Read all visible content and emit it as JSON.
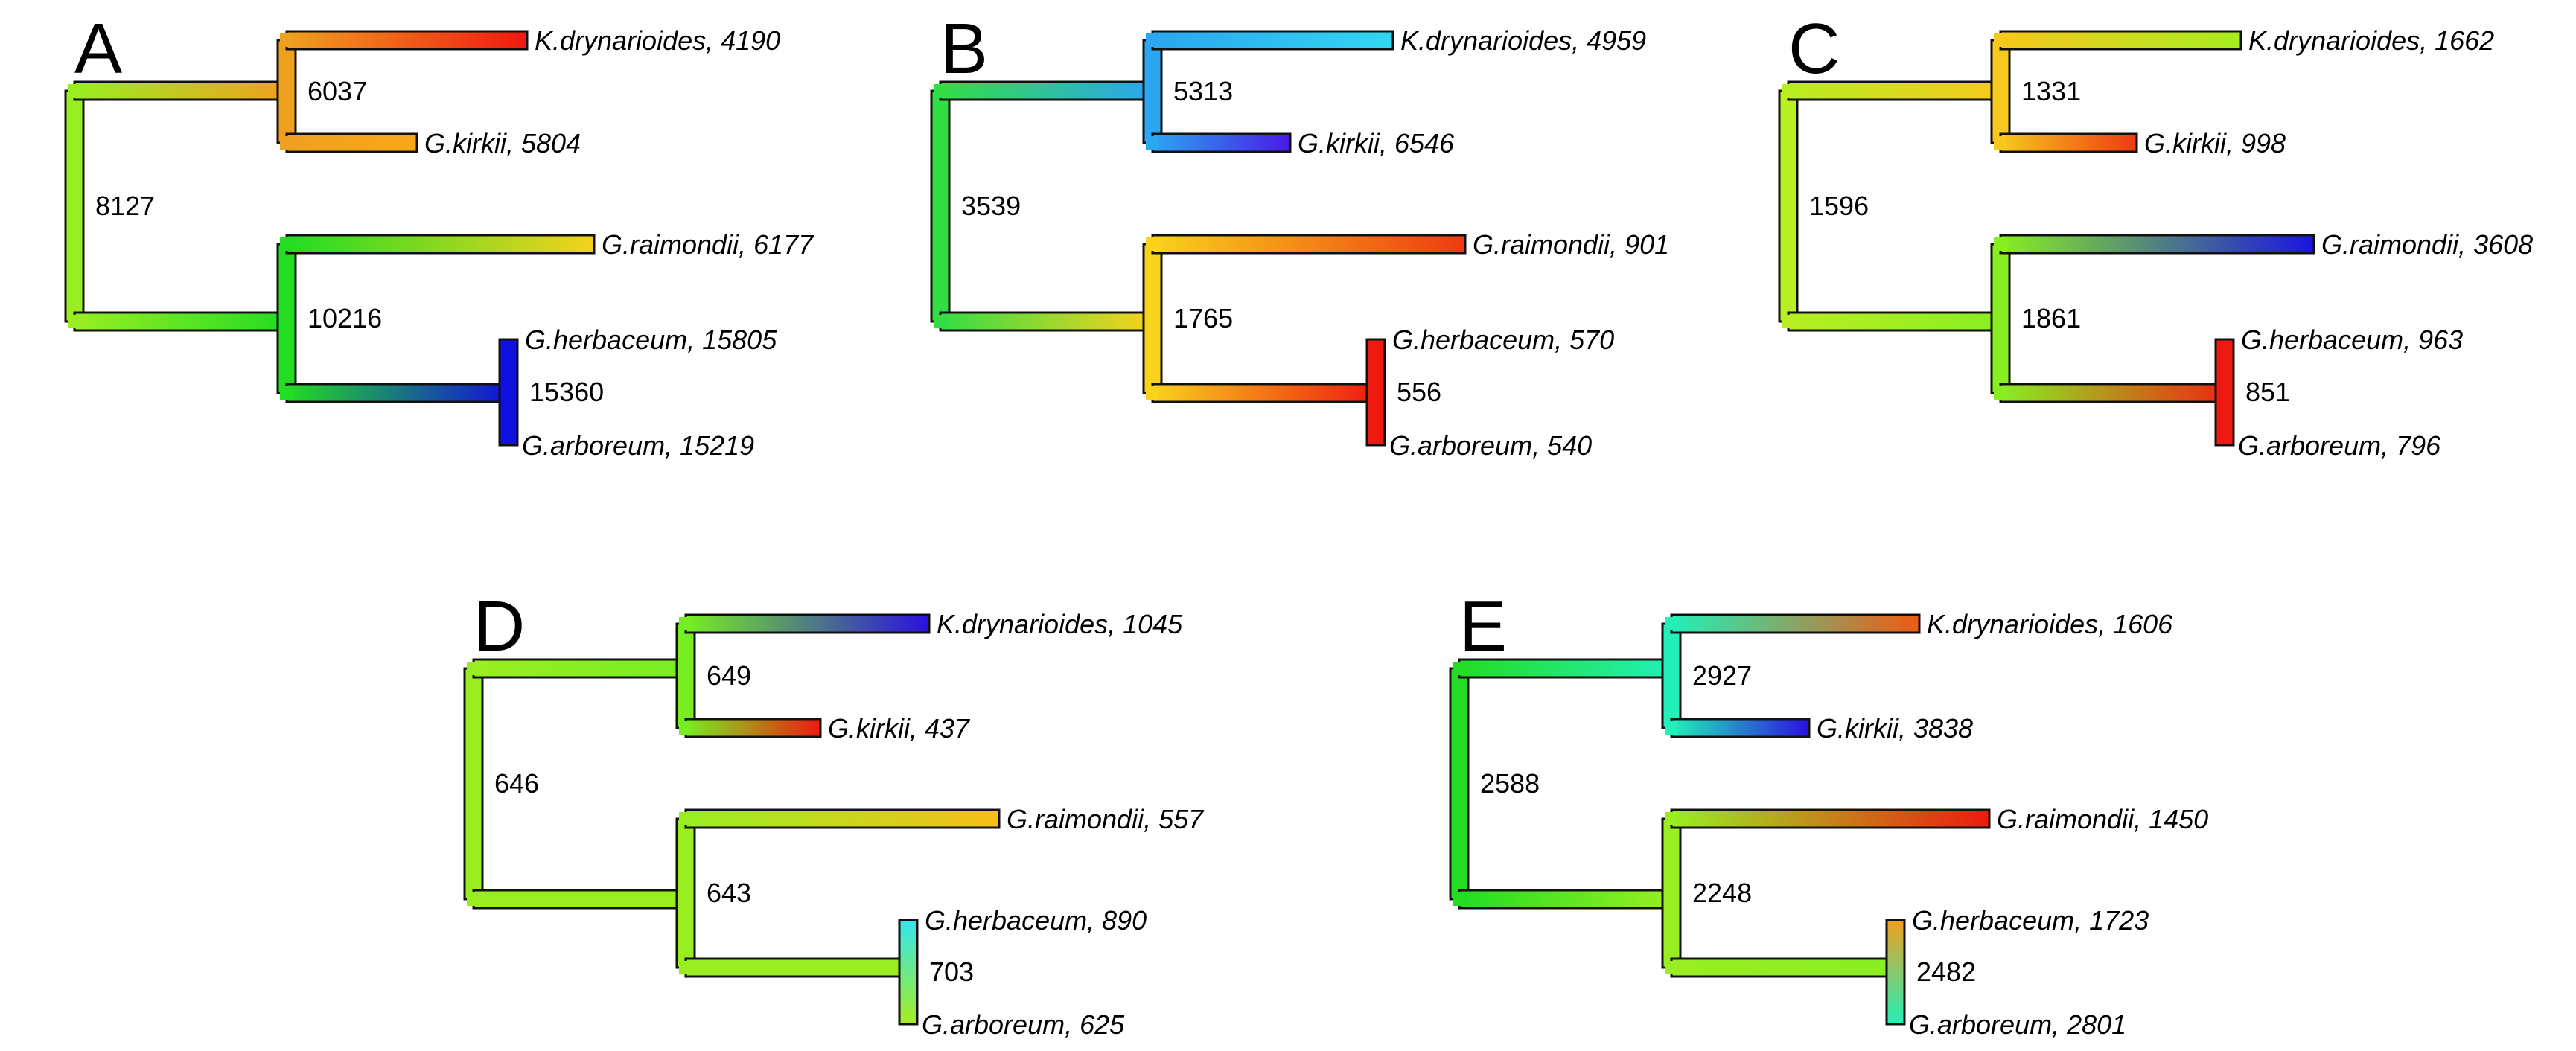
{
  "panels": [
    {
      "letter": "A",
      "nodes": {
        "root": "8127",
        "kg": "6037",
        "rha": "10216",
        "ha": "15360"
      },
      "leaves": [
        {
          "species": "K.drynarioides",
          "value": "4190",
          "label": "K.drynarioides, 4190"
        },
        {
          "species": "G.kirkii",
          "value": "5804",
          "label": "G.kirkii, 5804"
        },
        {
          "species": "G.raimondii",
          "value": "6177",
          "label": "G.raimondii, 6177"
        },
        {
          "species": "G.herbaceum",
          "value": "15805",
          "label": "G.herbaceum, 15805"
        },
        {
          "species": "G.arboreum",
          "value": "15219",
          "label": "G.arboreum, 15219"
        }
      ]
    },
    {
      "letter": "B",
      "nodes": {
        "root": "3539",
        "kg": "5313",
        "rha": "1765",
        "ha": "556"
      },
      "leaves": [
        {
          "species": "K.drynarioides",
          "value": "4959",
          "label": "K.drynarioides, 4959"
        },
        {
          "species": "G.kirkii",
          "value": "6546",
          "label": "G.kirkii, 6546"
        },
        {
          "species": "G.raimondii",
          "value": "901",
          "label": "G.raimondii, 901"
        },
        {
          "species": "G.herbaceum",
          "value": "570",
          "label": "G.herbaceum, 570"
        },
        {
          "species": "G.arboreum",
          "value": "540",
          "label": "G.arboreum, 540"
        }
      ]
    },
    {
      "letter": "C",
      "nodes": {
        "root": "1596",
        "kg": "1331",
        "rha": "1861",
        "ha": "851"
      },
      "leaves": [
        {
          "species": "K.drynarioides",
          "value": "1662",
          "label": "K.drynarioides, 1662"
        },
        {
          "species": "G.kirkii",
          "value": "998",
          "label": "G.kirkii, 998"
        },
        {
          "species": "G.raimondii",
          "value": "3608",
          "label": "G.raimondii, 3608"
        },
        {
          "species": "G.herbaceum",
          "value": "963",
          "label": "G.herbaceum, 963"
        },
        {
          "species": "G.arboreum",
          "value": "796",
          "label": "G.arboreum, 796"
        }
      ]
    },
    {
      "letter": "D",
      "nodes": {
        "root": "646",
        "kg": "649",
        "rha": "643",
        "ha": "703"
      },
      "leaves": [
        {
          "species": "K.drynarioides",
          "value": "1045",
          "label": "K.drynarioides, 1045"
        },
        {
          "species": "G.kirkii",
          "value": "437",
          "label": "G.kirkii, 437"
        },
        {
          "species": "G.raimondii",
          "value": "557",
          "label": "G.raimondii, 557"
        },
        {
          "species": "G.herbaceum",
          "value": "890",
          "label": "G.herbaceum, 890"
        },
        {
          "species": "G.arboreum",
          "value": "625",
          "label": "G.arboreum, 625"
        }
      ]
    },
    {
      "letter": "E",
      "nodes": {
        "root": "2588",
        "kg": "2927",
        "rha": "2248",
        "ha": "2482"
      },
      "leaves": [
        {
          "species": "K.drynarioides",
          "value": "1606",
          "label": "K.drynarioides, 1606"
        },
        {
          "species": "G.kirkii",
          "value": "3838",
          "label": "G.kirkii, 3838"
        },
        {
          "species": "G.raimondii",
          "value": "1450",
          "label": "G.raimondii, 1450"
        },
        {
          "species": "G.herbaceum",
          "value": "1723",
          "label": "G.herbaceum, 1723"
        },
        {
          "species": "G.arboreum",
          "value": "2801",
          "label": "G.arboreum, 2801"
        }
      ]
    }
  ],
  "branch_colors": [
    {
      "root": "#99ee22",
      "kg": "#f0a020",
      "rha": "#22dd22",
      "ha": "#1111dd",
      "k": "#ee1a10",
      "g": "#f7a81a",
      "r": "#f4d21e",
      "h": "#1010e0",
      "a": "#1010e0"
    },
    {
      "root": "#33dd44",
      "kg": "#2ba6f0",
      "rha": "#f9d21c",
      "ha": "#ee1a10",
      "k": "#33d6f2",
      "g": "#4a1ae6",
      "r": "#ee3a12",
      "h": "#ee1a10",
      "a": "#ee1a10"
    },
    {
      "root": "#b8ee22",
      "kg": "#f7c81e",
      "rha": "#88ee22",
      "ha": "#ee2a12",
      "k": "#a6ec22",
      "g": "#ee3a12",
      "r": "#1a14e0",
      "h": "#ee1a10",
      "a": "#ee1a10"
    },
    {
      "root": "#99ee22",
      "kg": "#77ee22",
      "rha": "#99ee22",
      "ha": "#99ee22",
      "k": "#2a10e0",
      "g": "#ee1a10",
      "r": "#f7be1a",
      "h": "#33e6f0",
      "a": "#a6ec22"
    },
    {
      "root": "#22dd22",
      "kg": "#22f0b8",
      "rha": "#99ee22",
      "ha": "#88ee22",
      "k": "#ee5a14",
      "g": "#2a10e0",
      "r": "#ee1a10",
      "h": "#f0a020",
      "a": "#22f0b8"
    }
  ]
}
